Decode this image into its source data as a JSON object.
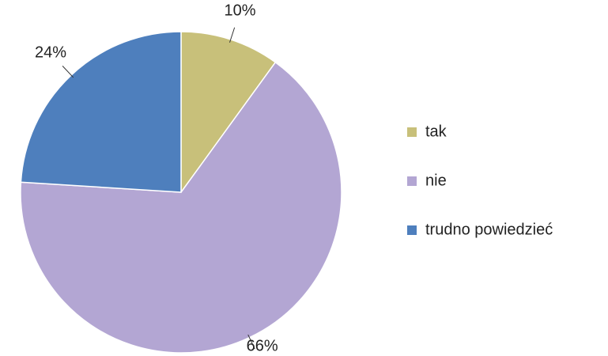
{
  "chart_data": {
    "type": "pie",
    "categories": [
      "tak",
      "nie",
      "trudno powiedzieć"
    ],
    "values": [
      10,
      66,
      24
    ],
    "value_labels": [
      "10%",
      "66%",
      "24%"
    ],
    "colors": [
      "#c8c07a",
      "#b3a6d3",
      "#4e7fbd"
    ],
    "legend": "right"
  }
}
